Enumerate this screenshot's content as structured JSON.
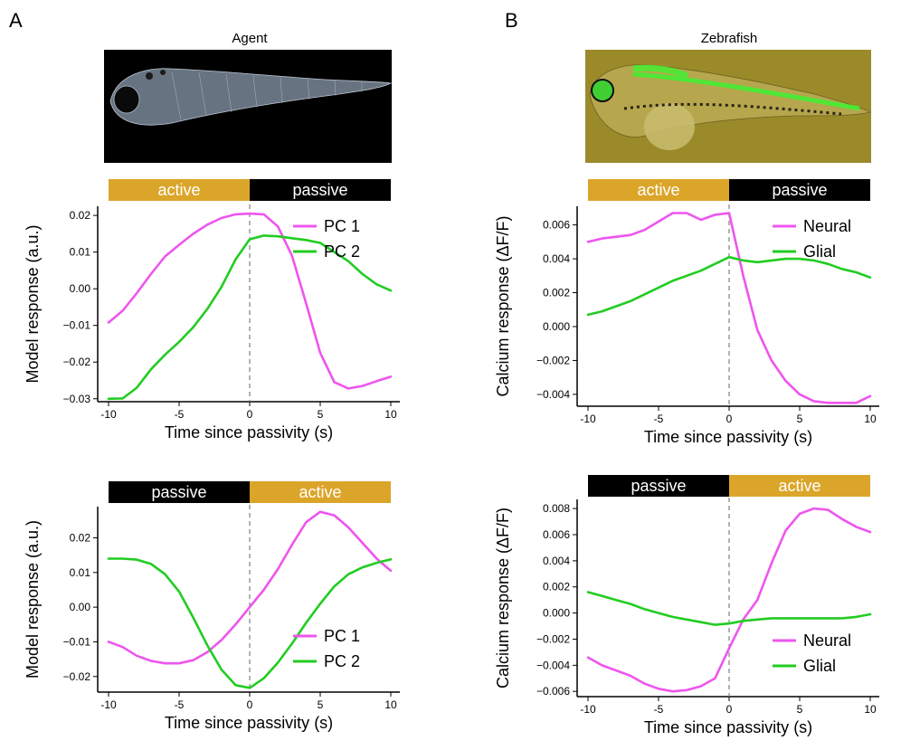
{
  "panel_labels": [
    "A",
    "B"
  ],
  "image_titles": {
    "agent": "Agent",
    "zebrafish": "Zebrafish"
  },
  "colors": {
    "pc1": "#ee55ee",
    "pc2": "#22cc22",
    "active_bar": "#dba52a",
    "passive_bar": "#000000",
    "zero_line": "#888888",
    "agent_bg": "#000000",
    "zebrafish_bg": "#9a8a2a"
  },
  "chart_data": [
    {
      "id": "agent-active-to-passive",
      "type": "line",
      "title": "Agent",
      "xlabel": "Time since passivity (s)",
      "ylabel": "Model response (a.u.)",
      "xlim": [
        -10,
        10
      ],
      "ylim": [
        -0.0308,
        0.0225
      ],
      "xticks": [
        -10,
        -5,
        0,
        5,
        10
      ],
      "xtick_labels": [
        "-10",
        "-5",
        "0",
        "5",
        "10"
      ],
      "yticks": [
        -0.03,
        -0.02,
        -0.01,
        0.0,
        0.01,
        0.02
      ],
      "ytick_labels": [
        "−0.03",
        "−0.02",
        "−0.01",
        "0.00",
        "0.01",
        "0.02"
      ],
      "phases": [
        {
          "label": "active",
          "from": -10,
          "to": 0,
          "kind": "active"
        },
        {
          "label": "passive",
          "from": 0,
          "to": 10,
          "kind": "passive"
        }
      ],
      "legend": "upper-right",
      "x": [
        -10,
        -9,
        -8,
        -7,
        -6,
        -5,
        -4,
        -3,
        -2,
        -1,
        0,
        1,
        2,
        3,
        4,
        5,
        6,
        7,
        8,
        9,
        10
      ],
      "series": [
        {
          "name": "PC 1",
          "color_key": "pc1",
          "values": [
            -0.0092,
            -0.006,
            -0.0012,
            0.004,
            0.0088,
            0.012,
            0.015,
            0.0175,
            0.0193,
            0.0203,
            0.0205,
            0.0203,
            0.017,
            0.009,
            -0.004,
            -0.0175,
            -0.0255,
            -0.0272,
            -0.0265,
            -0.0252,
            -0.024
          ]
        },
        {
          "name": "PC 2",
          "color_key": "pc2",
          "values": [
            -0.03,
            -0.0299,
            -0.027,
            -0.022,
            -0.018,
            -0.0145,
            -0.0105,
            -0.0055,
            0.0005,
            0.008,
            0.0135,
            0.0145,
            0.0143,
            0.0138,
            0.0133,
            0.0125,
            0.01,
            0.0075,
            0.004,
            0.0012,
            -0.0005
          ]
        }
      ]
    },
    {
      "id": "agent-passive-to-active",
      "type": "line",
      "xlabel": "Time since passivity (s)",
      "ylabel": "Model response (a.u.)",
      "xlim": [
        -10,
        10
      ],
      "ylim": [
        -0.0245,
        0.029
      ],
      "xticks": [
        -10,
        -5,
        0,
        5,
        10
      ],
      "xtick_labels": [
        "-10",
        "-5",
        "0",
        "5",
        "10"
      ],
      "yticks": [
        -0.02,
        -0.01,
        0.0,
        0.01,
        0.02
      ],
      "ytick_labels": [
        "−0.02",
        "−0.01",
        "0.00",
        "0.01",
        "0.02"
      ],
      "phases": [
        {
          "label": "passive",
          "from": -10,
          "to": 0,
          "kind": "passive"
        },
        {
          "label": "active",
          "from": 0,
          "to": 10,
          "kind": "active"
        }
      ],
      "legend": "lower-right",
      "x": [
        -10,
        -9,
        -8,
        -7,
        -6,
        -5,
        -4,
        -3,
        -2,
        -1,
        0,
        1,
        2,
        3,
        4,
        5,
        6,
        7,
        8,
        9,
        10
      ],
      "series": [
        {
          "name": "PC 1",
          "color_key": "pc1",
          "values": [
            -0.01,
            -0.0115,
            -0.014,
            -0.0155,
            -0.0162,
            -0.0162,
            -0.0153,
            -0.013,
            -0.0095,
            -0.005,
            0.0,
            0.005,
            0.011,
            0.018,
            0.0245,
            0.0275,
            0.0265,
            0.023,
            0.0185,
            0.014,
            0.0105
          ]
        },
        {
          "name": "PC 2",
          "color_key": "pc2",
          "values": [
            0.014,
            0.014,
            0.0137,
            0.0125,
            0.0095,
            0.0045,
            -0.003,
            -0.011,
            -0.018,
            -0.0225,
            -0.0233,
            -0.0205,
            -0.016,
            -0.0105,
            -0.0045,
            0.001,
            0.006,
            0.0095,
            0.0115,
            0.0128,
            0.0138
          ]
        }
      ]
    },
    {
      "id": "zebrafish-active-to-passive",
      "type": "line",
      "title": "Zebrafish",
      "xlabel": "Time since passivity (s)",
      "ylabel": "Calcium  response (ΔF/F)",
      "xlim": [
        -10,
        10
      ],
      "ylim": [
        -0.0047,
        0.0071
      ],
      "xticks": [
        -10,
        -5,
        0,
        5,
        10
      ],
      "xtick_labels": [
        "-10",
        "-5",
        "0",
        "5",
        "10"
      ],
      "yticks": [
        -0.004,
        -0.002,
        0.0,
        0.002,
        0.004,
        0.006
      ],
      "ytick_labels": [
        "−0.004",
        "−0.002",
        "0.000",
        "0.002",
        "0.004",
        "0.006"
      ],
      "phases": [
        {
          "label": "active",
          "from": -10,
          "to": 0,
          "kind": "active"
        },
        {
          "label": "passive",
          "from": 0,
          "to": 10,
          "kind": "passive"
        }
      ],
      "legend": "upper-right",
      "x": [
        -10,
        -9,
        -8,
        -7,
        -6,
        -5,
        -4,
        -3,
        -2,
        -1,
        0,
        1,
        2,
        3,
        4,
        5,
        6,
        7,
        8,
        9,
        10
      ],
      "series": [
        {
          "name": "Neural",
          "color_key": "pc1",
          "values": [
            0.005,
            0.0052,
            0.0053,
            0.0054,
            0.0057,
            0.0062,
            0.0067,
            0.0067,
            0.0063,
            0.0066,
            0.0067,
            0.003,
            -0.0002,
            -0.002,
            -0.0032,
            -0.004,
            -0.0044,
            -0.0045,
            -0.0045,
            -0.0045,
            -0.0041
          ]
        },
        {
          "name": "Glial",
          "color_key": "pc2",
          "values": [
            0.0007,
            0.0009,
            0.0012,
            0.0015,
            0.0019,
            0.0023,
            0.0027,
            0.003,
            0.0033,
            0.0037,
            0.0041,
            0.0039,
            0.0038,
            0.0039,
            0.004,
            0.004,
            0.0039,
            0.0037,
            0.0034,
            0.0032,
            0.0029
          ]
        }
      ]
    },
    {
      "id": "zebrafish-passive-to-active",
      "type": "line",
      "xlabel": "Time since passivity (s)",
      "ylabel": "Calcium  response (ΔF/F)",
      "xlim": [
        -10,
        10
      ],
      "ylim": [
        -0.0064,
        0.0087
      ],
      "xticks": [
        -10,
        -5,
        0,
        5,
        10
      ],
      "xtick_labels": [
        "-10",
        "-5",
        "0",
        "5",
        "10"
      ],
      "yticks": [
        -0.006,
        -0.004,
        -0.002,
        0.0,
        0.002,
        0.004,
        0.006,
        0.008
      ],
      "ytick_labels": [
        "−0.006",
        "−0.004",
        "−0.002",
        "0.000",
        "0.002",
        "0.004",
        "0.006",
        "0.008"
      ],
      "phases": [
        {
          "label": "passive",
          "from": -10,
          "to": 0,
          "kind": "passive"
        },
        {
          "label": "active",
          "from": 0,
          "to": 10,
          "kind": "active"
        }
      ],
      "legend": "lower-right",
      "x": [
        -10,
        -9,
        -8,
        -7,
        -6,
        -5,
        -4,
        -3,
        -2,
        -1,
        0,
        1,
        2,
        3,
        4,
        5,
        6,
        7,
        8,
        9,
        10
      ],
      "series": [
        {
          "name": "Neural",
          "color_key": "pc1",
          "values": [
            -0.0034,
            -0.004,
            -0.0044,
            -0.0048,
            -0.0054,
            -0.0058,
            -0.006,
            -0.0059,
            -0.0056,
            -0.005,
            -0.0027,
            -0.0005,
            0.001,
            0.0038,
            0.0063,
            0.0076,
            0.008,
            0.0079,
            0.0072,
            0.0066,
            0.0062
          ]
        },
        {
          "name": "Glial",
          "color_key": "pc2",
          "values": [
            0.0016,
            0.0013,
            0.001,
            0.0007,
            0.0003,
            0.0,
            -0.0003,
            -0.0005,
            -0.0007,
            -0.0009,
            -0.0008,
            -0.0006,
            -0.0005,
            -0.0004,
            -0.0004,
            -0.0004,
            -0.0004,
            -0.0004,
            -0.0004,
            -0.0003,
            -0.0001
          ]
        }
      ]
    }
  ]
}
